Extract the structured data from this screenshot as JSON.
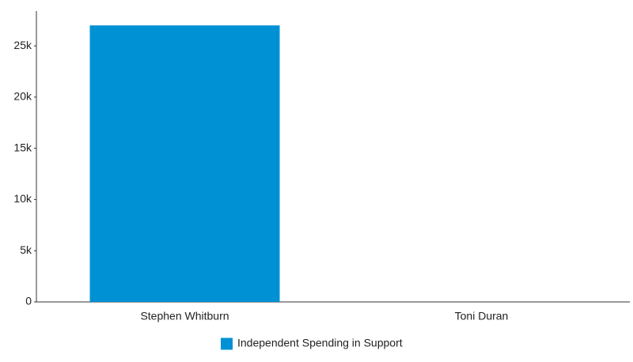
{
  "chart_data": {
    "type": "bar",
    "categories": [
      "Stephen Whitburn",
      "Toni Duran"
    ],
    "series": [
      {
        "name": "Independent Spending in Support",
        "color": "#0091d5",
        "values": [
          27000,
          0
        ]
      }
    ],
    "ylim": [
      0,
      28400
    ],
    "yticks": [
      0,
      {
        "value": 5000,
        "label": "5k"
      },
      {
        "value": 10000,
        "label": "10k"
      },
      {
        "value": 15000,
        "label": "15k"
      },
      {
        "value": 20000,
        "label": "20k"
      },
      {
        "value": 25000,
        "label": "25k"
      }
    ],
    "grid": false,
    "legend": "bottom"
  }
}
